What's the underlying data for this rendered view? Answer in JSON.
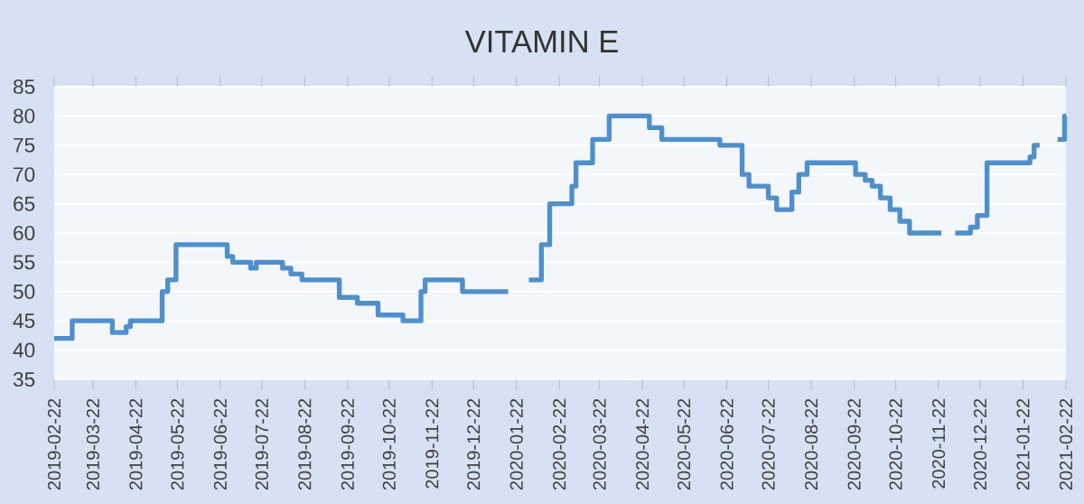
{
  "chart_data": {
    "type": "step",
    "title": "VITAMIN E",
    "color": "#4f8fcc",
    "grid": "y",
    "x": [
      "2019-02-22",
      "2019-03-07",
      "2019-04-05",
      "2019-04-15",
      "2019-04-18",
      "2019-05-11",
      "2019-05-15",
      "2019-05-21",
      "2019-06-27",
      "2019-07-01",
      "2019-07-14",
      "2019-07-18",
      "2019-08-06",
      "2019-08-12",
      "2019-08-20",
      "2019-09-16",
      "2019-09-29",
      "2019-10-14",
      "2019-11-01",
      "2019-11-14",
      "2019-11-17",
      "2019-12-14",
      "2020-01-16",
      "2020-01-24",
      "2020-01-31",
      "2020-02-09",
      "2020-02-15",
      "2020-03-02",
      "2020-03-05",
      "2020-03-17",
      "2020-03-29",
      "2020-04-27",
      "2020-05-06",
      "2020-06-17",
      "2020-07-03",
      "2020-07-08",
      "2020-07-22",
      "2020-07-28",
      "2020-08-08",
      "2020-08-13",
      "2020-08-19",
      "2020-09-23",
      "2020-09-30",
      "2020-10-05",
      "2020-10-11",
      "2020-10-18",
      "2020-10-25",
      "2020-11-01",
      "2020-11-24",
      "2020-11-28",
      "2020-12-04",
      "2020-12-15",
      "2020-12-20",
      "2020-12-27",
      "2021-01-27",
      "2021-01-30",
      "2021-02-03",
      "2021-02-08",
      "2021-02-16",
      "2021-02-21",
      "2021-02-22"
    ],
    "values": [
      42,
      45,
      43,
      44,
      45,
      50,
      52,
      58,
      56,
      55,
      54,
      55,
      54,
      53,
      52,
      49,
      48,
      46,
      45,
      50,
      52,
      50,
      50,
      null,
      52,
      58,
      65,
      68,
      72,
      76,
      80,
      78,
      76,
      75,
      70,
      68,
      66,
      64,
      67,
      70,
      72,
      70,
      69,
      68,
      66,
      64,
      62,
      60,
      60,
      null,
      60,
      61,
      63,
      72,
      73,
      75,
      75,
      null,
      76,
      80,
      80
    ],
    "xlim": [
      "2019-02-22",
      "2021-02-22"
    ],
    "xticks": [
      "2019-02-22",
      "2019-03-22",
      "2019-04-22",
      "2019-05-22",
      "2019-06-22",
      "2019-07-22",
      "2019-08-22",
      "2019-09-22",
      "2019-10-22",
      "2019-11-22",
      "2019-12-22",
      "2020-01-22",
      "2020-02-22",
      "2020-03-22",
      "2020-04-22",
      "2020-05-22",
      "2020-06-22",
      "2020-07-22",
      "2020-08-22",
      "2020-09-22",
      "2020-10-22",
      "2020-11-22",
      "2020-12-22",
      "2021-01-22",
      "2021-02-22"
    ],
    "ylim": [
      35,
      85
    ],
    "yticks": [
      35,
      40,
      45,
      50,
      55,
      60,
      65,
      70,
      75,
      80,
      85
    ]
  }
}
